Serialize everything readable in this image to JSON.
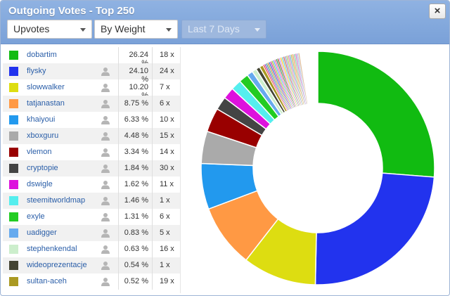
{
  "window": {
    "title": "Outgoing Votes - Top 250",
    "close_label": "×"
  },
  "filters": {
    "vote_type": "Upvotes",
    "sort_by": "By Weight",
    "period": "Last 7 Days"
  },
  "voters": [
    {
      "name": "dobartim",
      "percent": "26.24 %",
      "count": "18 x",
      "color": "#11bb11"
    },
    {
      "name": "flysky",
      "percent": "24.10 %",
      "count": "24 x",
      "color": "#2233ee"
    },
    {
      "name": "slowwalker",
      "percent": "10.20 %",
      "count": "7 x",
      "color": "#dddd11"
    },
    {
      "name": "tatjanastan",
      "percent": "8.75 %",
      "count": "6 x",
      "color": "#ff9944"
    },
    {
      "name": "khaiyoui",
      "percent": "6.33 %",
      "count": "10 x",
      "color": "#2299ee"
    },
    {
      "name": "xboxguru",
      "percent": "4.48 %",
      "count": "15 x",
      "color": "#aaaaaa"
    },
    {
      "name": "vlemon",
      "percent": "3.34 %",
      "count": "14 x",
      "color": "#990000"
    },
    {
      "name": "cryptopie",
      "percent": "1.84 %",
      "count": "30 x",
      "color": "#444444"
    },
    {
      "name": "dswigle",
      "percent": "1.62 %",
      "count": "11 x",
      "color": "#dd11dd"
    },
    {
      "name": "steemitworldmap",
      "percent": "1.46 %",
      "count": "1 x",
      "color": "#55eeee"
    },
    {
      "name": "exyle",
      "percent": "1.31 %",
      "count": "6 x",
      "color": "#22cc22"
    },
    {
      "name": "uadigger",
      "percent": "0.83 %",
      "count": "5 x",
      "color": "#66aaee"
    },
    {
      "name": "stephenkendal",
      "percent": "0.63 %",
      "count": "16 x",
      "color": "#cceecc"
    },
    {
      "name": "wideoprezentacje",
      "percent": "0.54 %",
      "count": "1 x",
      "color": "#444433"
    },
    {
      "name": "sultan-aceh",
      "percent": "0.52 %",
      "count": "19 x",
      "color": "#aa9922"
    }
  ],
  "chart_data": {
    "type": "pie",
    "style": "donut",
    "categories": [
      "dobartim",
      "flysky",
      "slowwalker",
      "tatjanastan",
      "khaiyoui",
      "xboxguru",
      "vlemon",
      "cryptopie",
      "dswigle",
      "steemitworldmap",
      "exyle",
      "uadigger",
      "stephenkendal",
      "wideoprezentacje",
      "sultan-aceh"
    ],
    "values": [
      26.24,
      24.1,
      10.2,
      8.75,
      6.33,
      4.48,
      3.34,
      1.84,
      1.62,
      1.46,
      1.31,
      0.83,
      0.63,
      0.54,
      0.52
    ],
    "colors": [
      "#11bb11",
      "#2233ee",
      "#dddd11",
      "#ff9944",
      "#2299ee",
      "#aaaaaa",
      "#990000",
      "#444444",
      "#dd11dd",
      "#55eeee",
      "#22cc22",
      "#66aaee",
      "#cceecc",
      "#444433",
      "#aa9922"
    ],
    "other_colors": [
      "#ee4444",
      "#8844cc",
      "#44aa88",
      "#cc8844",
      "#3366cc",
      "#cc3399",
      "#99cc33",
      "#6699ff",
      "#ff6699",
      "#339966",
      "#996633",
      "#cc99ff",
      "#ffcc33",
      "#66cccc",
      "#cc6666",
      "#9999cc",
      "#aacc66",
      "#dd88aa",
      "#77aadd",
      "#bbbb55",
      "#ee9966",
      "#88ccaa",
      "#cc77cc",
      "#aabbdd",
      "#ddbb99"
    ]
  }
}
